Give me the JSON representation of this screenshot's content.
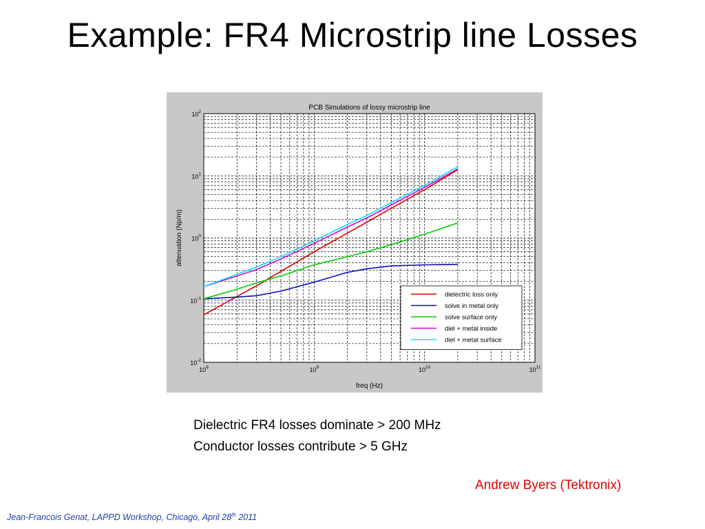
{
  "slide": {
    "title": "Example:  FR4  Microstrip line Losses",
    "notes": [
      "Dielectric FR4 losses dominate > 200 MHz",
      "Conductor losses contribute > 5 GHz"
    ],
    "credit": "Andrew Byers (Tektronix)",
    "footer": {
      "text_before": "Jean-Francois Genat,  LAPPD Workshop, Chicago, April 28",
      "superscript": "th",
      "text_after": " 2011"
    },
    "colors": {
      "credit": "#e00000",
      "footer": "#1f3fa8",
      "chart_background": "#c8c8c8"
    }
  },
  "chart_data": {
    "type": "line",
    "title": "PCB Simulations of lossy microstrip line",
    "xlabel": "freq (Hz)",
    "ylabel": "attenuation (Np/m)",
    "xscale": "log",
    "yscale": "log",
    "xlim": [
      100000000,
      100000000000
    ],
    "ylim": [
      0.01,
      100
    ],
    "xticks": [
      {
        "value": 100000000,
        "base": "10",
        "exp": "8"
      },
      {
        "value": 1000000000,
        "base": "10",
        "exp": "9"
      },
      {
        "value": 10000000000,
        "base": "10",
        "exp": "10"
      },
      {
        "value": 100000000000,
        "base": "10",
        "exp": "11"
      }
    ],
    "yticks": [
      {
        "value": 0.01,
        "base": "10",
        "exp": "-2"
      },
      {
        "value": 0.1,
        "base": "10",
        "exp": "-1"
      },
      {
        "value": 1,
        "base": "10",
        "exp": "0"
      },
      {
        "value": 10,
        "base": "10",
        "exp": "1"
      },
      {
        "value": 100,
        "base": "10",
        "exp": "2"
      }
    ],
    "grid": true,
    "legend_position": "bottom-right",
    "series": [
      {
        "name": "dielectric loss only",
        "color": "#e00000",
        "x": [
          100000000,
          200000000,
          300000000,
          500000000,
          1000000000,
          2000000000,
          3000000000,
          5000000000,
          10000000000,
          20000000000
        ],
        "y": [
          0.058,
          0.115,
          0.17,
          0.29,
          0.6,
          1.2,
          1.8,
          3.0,
          6.0,
          12.5
        ]
      },
      {
        "name": "solve in metal only",
        "color": "#0010c0",
        "x": [
          100000000,
          200000000,
          300000000,
          500000000,
          1000000000,
          2000000000,
          3000000000,
          5000000000,
          10000000000,
          20000000000
        ],
        "y": [
          0.105,
          0.112,
          0.118,
          0.14,
          0.195,
          0.28,
          0.32,
          0.355,
          0.37,
          0.375
        ]
      },
      {
        "name": "solve surface only",
        "color": "#00cc00",
        "x": [
          100000000,
          200000000,
          300000000,
          500000000,
          1000000000,
          2000000000,
          3000000000,
          5000000000,
          10000000000,
          20000000000
        ],
        "y": [
          0.105,
          0.15,
          0.19,
          0.245,
          0.37,
          0.5,
          0.6,
          0.78,
          1.15,
          1.75
        ]
      },
      {
        "name": "diel + metal inside",
        "color": "#e000e0",
        "x": [
          100000000,
          200000000,
          300000000,
          500000000,
          1000000000,
          2000000000,
          3000000000,
          5000000000,
          10000000000,
          20000000000
        ],
        "y": [
          0.165,
          0.245,
          0.31,
          0.46,
          0.82,
          1.5,
          2.1,
          3.4,
          6.5,
          13.0
        ]
      },
      {
        "name": "diel + metal surface",
        "color": "#00e5ee",
        "x": [
          100000000,
          200000000,
          300000000,
          500000000,
          1000000000,
          2000000000,
          3000000000,
          5000000000,
          10000000000,
          20000000000
        ],
        "y": [
          0.165,
          0.26,
          0.34,
          0.5,
          0.9,
          1.65,
          2.3,
          3.7,
          7.0,
          14.0
        ]
      }
    ]
  }
}
